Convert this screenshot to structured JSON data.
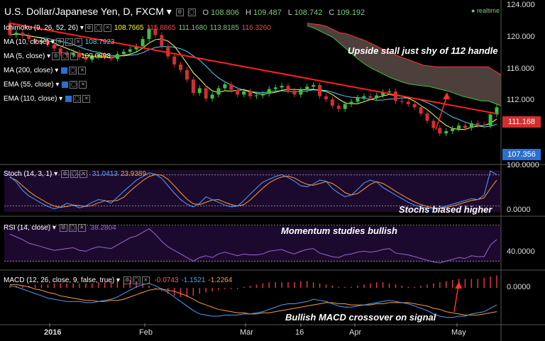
{
  "header": {
    "title": "U.S. Dollar/Japanese Yen, D, FXCM",
    "o_label": "O",
    "o": "108.806",
    "h_label": "H",
    "h": "109.487",
    "l_label": "L",
    "l": "108.742",
    "c_label": "C",
    "c": "109.192",
    "realtime": "realtime",
    "down_glyph": "▾"
  },
  "main_indicators": [
    {
      "label": "Ichimoku (9, 26, 52, 26)",
      "values": [
        "108.7665",
        "115.8865",
        "111.1680",
        "113.8185",
        "116.3260"
      ],
      "colors": [
        "#ffff00",
        "#ff4444",
        "#7ec97e",
        "#7ec97e",
        "#ff4444"
      ]
    },
    {
      "label": "MA (10, close)",
      "values": [
        "108.7923"
      ],
      "colors": [
        "#4fd0ff"
      ]
    },
    {
      "label": "MA (5, close)",
      "values": [
        "109.0898"
      ],
      "colors": [
        "#ffff66"
      ]
    },
    {
      "label": "MA (200, close)",
      "values": [],
      "colors": []
    },
    {
      "label": "EMA (55, close)",
      "values": [],
      "colors": []
    },
    {
      "label": "EMA (110, close)",
      "values": [],
      "colors": []
    }
  ],
  "stoch": {
    "label": "Stoch (14, 3, 1)",
    "values": [
      "31.0413",
      "23.9389"
    ],
    "colors": [
      "#4fa0ff",
      "#ff9933"
    ]
  },
  "rsi": {
    "label": "RSI (14, close)",
    "value": "38.2804",
    "color": "#9966cc"
  },
  "macd": {
    "label": "MACD (12, 26, close, 9, false, true)",
    "values": [
      "-0.0743",
      "-1.1521",
      "-1.2264"
    ],
    "colors": [
      "#ff5566",
      "#4fa0ff",
      "#ff9933"
    ]
  },
  "annotations": [
    "Upside stall just shy of 112 handle",
    "Stochs biased higher",
    "Momentum studies bullish",
    "Bullish MACD crossover on signal"
  ],
  "price_badges": {
    "current": "111.168",
    "last": "107.356",
    "current_color": "#d32f2f",
    "last_color": "#2a6fd1"
  },
  "colors": {
    "bull": "#3fbf3f",
    "bear": "#d03030",
    "cloud": "#5a4a46",
    "trend": "#ff2020"
  },
  "chart_data": [
    {
      "type": "candlestick",
      "ylim": [
        104,
        124
      ],
      "yticks": [
        "124.000",
        "120.000",
        "116.000",
        "112.000"
      ],
      "xticks": [
        {
          "label": "2016",
          "bold": true
        },
        {
          "label": "Feb"
        },
        {
          "label": "Mar"
        },
        {
          "label": "16"
        },
        {
          "label": "Apr"
        },
        {
          "label": "May"
        }
      ],
      "close": [
        120.3,
        120.6,
        120.2,
        119.8,
        119.4,
        119.6,
        119.1,
        118.6,
        118.0,
        117.8,
        118.1,
        117.5,
        117.2,
        117.6,
        117.8,
        117.5,
        117.3,
        117.9,
        118.2,
        118.5,
        118.9,
        119.8,
        121.1,
        120.3,
        118.9,
        117.6,
        116.6,
        115.9,
        114.7,
        113.0,
        113.6,
        112.3,
        112.8,
        113.6,
        114.1,
        113.4,
        112.8,
        113.2,
        112.6,
        112.7,
        112.9,
        113.5,
        113.7,
        113.9,
        113.3,
        112.8,
        113.4,
        113.8,
        114.0,
        112.6,
        112.2,
        111.4,
        111.0,
        111.6,
        111.9,
        112.4,
        112.6,
        112.4,
        112.7,
        113.1,
        113.2,
        112.0,
        111.9,
        111.6,
        111.2,
        110.4,
        109.5,
        108.6,
        107.9,
        108.2,
        108.5,
        108.9,
        108.6,
        109.2,
        109.0,
        108.9,
        110.3,
        111.2
      ],
      "open": [
        121.8,
        120.3,
        120.6,
        120.2,
        119.8,
        119.4,
        119.6,
        119.1,
        118.6,
        118.0,
        117.8,
        118.1,
        117.5,
        117.2,
        117.6,
        117.8,
        117.5,
        117.3,
        117.9,
        118.2,
        118.5,
        118.9,
        119.8,
        121.1,
        120.3,
        118.9,
        117.6,
        116.6,
        115.9,
        114.7,
        113.0,
        113.6,
        112.3,
        112.8,
        113.6,
        114.1,
        113.4,
        112.8,
        113.2,
        112.6,
        112.7,
        112.9,
        113.5,
        113.7,
        113.9,
        113.3,
        112.8,
        113.4,
        113.8,
        114.0,
        112.6,
        112.2,
        111.4,
        111.0,
        111.6,
        111.9,
        112.4,
        112.6,
        112.4,
        112.7,
        113.1,
        113.2,
        112.0,
        111.9,
        111.6,
        111.2,
        110.4,
        109.5,
        108.6,
        107.9,
        108.2,
        108.5,
        108.9,
        108.6,
        109.2,
        109.0,
        108.9,
        110.3
      ],
      "trendline": [
        [
          0,
          121.8
        ],
        [
          77,
          110.4
        ]
      ],
      "cloud_upper": [
        121.8,
        121.7,
        121.6,
        121.4,
        121.0,
        120.6,
        120.5,
        120.2,
        119.9,
        119.6,
        119.2,
        118.8,
        118.4,
        118.1,
        117.7,
        117.4,
        117.1,
        116.8,
        116.5,
        116.4,
        116.3,
        116.3,
        116.3,
        116.3,
        116.3,
        116.3,
        116.3,
        116.3,
        116.3,
        115.8,
        115.3
      ],
      "cloud_lower": [
        121.5,
        121.2,
        120.8,
        120.4,
        120.0,
        119.3,
        118.6,
        117.9,
        117.2,
        116.6,
        116.1,
        115.7,
        115.3,
        114.9,
        114.6,
        114.3,
        114.1,
        114.0,
        113.9,
        113.8,
        113.6,
        113.4,
        113.2,
        112.9,
        112.6,
        112.4,
        112.2,
        112.0,
        112.0,
        111.7,
        111.4
      ]
    },
    {
      "type": "line",
      "name": "Stoch",
      "ylim": [
        0,
        100
      ],
      "yticks": [
        "100.0000",
        "0.0000"
      ],
      "k": [
        80,
        68,
        50,
        38,
        30,
        22,
        15,
        10,
        14,
        22,
        18,
        12,
        16,
        24,
        30,
        28,
        22,
        35,
        48,
        60,
        72,
        80,
        88,
        85,
        76,
        60,
        44,
        30,
        20,
        14,
        22,
        36,
        30,
        24,
        18,
        14,
        16,
        28,
        42,
        55,
        68,
        74,
        80,
        84,
        78,
        70,
        60,
        58,
        64,
        72,
        70,
        54,
        44,
        36,
        40,
        52,
        66,
        72,
        68,
        56,
        48,
        40,
        32,
        24,
        18,
        14,
        12,
        10,
        12,
        16,
        20,
        24,
        28,
        32,
        30,
        40,
        92,
        84
      ],
      "d": [
        78,
        72,
        60,
        48,
        38,
        30,
        22,
        16,
        13,
        15,
        18,
        17,
        15,
        17,
        23,
        27,
        27,
        28,
        35,
        48,
        60,
        71,
        80,
        84,
        83,
        74,
        60,
        45,
        31,
        21,
        19,
        24,
        29,
        30,
        24,
        19,
        16,
        19,
        29,
        42,
        55,
        66,
        74,
        79,
        81,
        77,
        69,
        63,
        61,
        65,
        69,
        65,
        56,
        45,
        40,
        43,
        53,
        63,
        69,
        65,
        57,
        48,
        40,
        32,
        25,
        19,
        15,
        12,
        11,
        13,
        16,
        20,
        24,
        28,
        30,
        34,
        54,
        72
      ]
    },
    {
      "type": "line",
      "name": "RSI",
      "ylim": [
        20,
        80
      ],
      "yticks": [
        "40.0000"
      ],
      "values": [
        60,
        57,
        54,
        50,
        48,
        46,
        44,
        42,
        43,
        44,
        45,
        42,
        41,
        44,
        46,
        45,
        44,
        48,
        52,
        56,
        58,
        62,
        66,
        60,
        52,
        46,
        42,
        38,
        34,
        30,
        34,
        36,
        34,
        38,
        40,
        38,
        36,
        38,
        37,
        37,
        38,
        41,
        42,
        43,
        40,
        38,
        41,
        43,
        44,
        39,
        37,
        35,
        34,
        37,
        38,
        40,
        41,
        40,
        41,
        43,
        44,
        39,
        38,
        37,
        35,
        33,
        31,
        29,
        28,
        30,
        32,
        34,
        33,
        36,
        35,
        35,
        48,
        54
      ]
    },
    {
      "type": "macd",
      "name": "MACD",
      "ylim": [
        -3,
        1.2
      ],
      "yticks": [
        "0.0000"
      ],
      "macd": [
        0.2,
        0.1,
        -0.1,
        -0.3,
        -0.5,
        -0.7,
        -0.9,
        -1.0,
        -1.1,
        -1.2,
        -1.2,
        -1.2,
        -1.3,
        -1.3,
        -1.2,
        -1.1,
        -1.0,
        -0.8,
        -0.5,
        -0.2,
        0.1,
        0.3,
        0.4,
        0.2,
        -0.1,
        -0.4,
        -0.8,
        -1.2,
        -1.6,
        -2.0,
        -2.3,
        -2.4,
        -2.5,
        -2.5,
        -2.4,
        -2.4,
        -2.4,
        -2.3,
        -2.3,
        -2.2,
        -2.1,
        -1.9,
        -1.7,
        -1.5,
        -1.4,
        -1.4,
        -1.3,
        -1.2,
        -1.0,
        -1.1,
        -1.2,
        -1.4,
        -1.6,
        -1.7,
        -1.7,
        -1.6,
        -1.5,
        -1.4,
        -1.3,
        -1.2,
        -1.1,
        -1.2,
        -1.3,
        -1.4,
        -1.6,
        -1.8,
        -2.0,
        -2.3,
        -2.5,
        -2.6,
        -2.6,
        -2.5,
        -2.5,
        -2.3,
        -2.2,
        -2.1,
        -1.8,
        -1.5
      ],
      "signal": [
        0.3,
        0.3,
        0.2,
        0.1,
        -0.1,
        -0.2,
        -0.4,
        -0.5,
        -0.7,
        -0.8,
        -0.9,
        -1.0,
        -1.1,
        -1.1,
        -1.2,
        -1.2,
        -1.1,
        -1.1,
        -1.0,
        -0.8,
        -0.6,
        -0.4,
        -0.2,
        -0.1,
        -0.1,
        -0.2,
        -0.3,
        -0.5,
        -0.7,
        -1.0,
        -1.3,
        -1.5,
        -1.7,
        -1.9,
        -2.0,
        -2.1,
        -2.2,
        -2.2,
        -2.3,
        -2.3,
        -2.2,
        -2.2,
        -2.1,
        -2.0,
        -1.9,
        -1.8,
        -1.7,
        -1.6,
        -1.5,
        -1.4,
        -1.3,
        -1.3,
        -1.4,
        -1.4,
        -1.5,
        -1.5,
        -1.5,
        -1.5,
        -1.4,
        -1.4,
        -1.3,
        -1.3,
        -1.3,
        -1.3,
        -1.4,
        -1.5,
        -1.6,
        -1.8,
        -1.9,
        -2.1,
        -2.2,
        -2.3,
        -2.4,
        -2.4,
        -2.4,
        -2.3,
        -2.2,
        -2.1
      ],
      "hist": [
        0.2,
        0.2,
        0.2,
        0.2,
        0.3,
        0.3,
        0.3,
        0.4,
        0.4,
        0.4,
        0.4,
        0.4,
        0.4,
        0.4,
        0.5,
        0.5,
        0.6,
        0.7,
        0.7,
        0.7,
        0.6,
        0.4,
        0.2,
        -0.1,
        -0.3,
        -0.5,
        -0.7,
        -0.8,
        -0.8,
        -0.7,
        -0.5,
        -0.4,
        -0.3,
        -0.2,
        -0.1,
        -0.1,
        -0.1,
        0.1,
        0.2,
        0.3,
        0.4,
        0.5,
        0.5,
        0.5,
        0.5,
        0.5,
        0.6,
        0.6,
        0.5,
        0.4,
        0.3,
        0.2,
        0.1,
        0.1,
        0.1,
        0.2,
        0.3,
        0.4,
        0.5,
        0.5,
        0.4,
        0.3,
        0.2,
        0.1,
        0.1,
        0.2,
        0.3,
        0.4,
        0.5,
        0.6,
        0.7,
        0.8,
        0.8,
        0.8,
        0.8,
        0.9,
        1.0,
        1.1
      ]
    }
  ]
}
